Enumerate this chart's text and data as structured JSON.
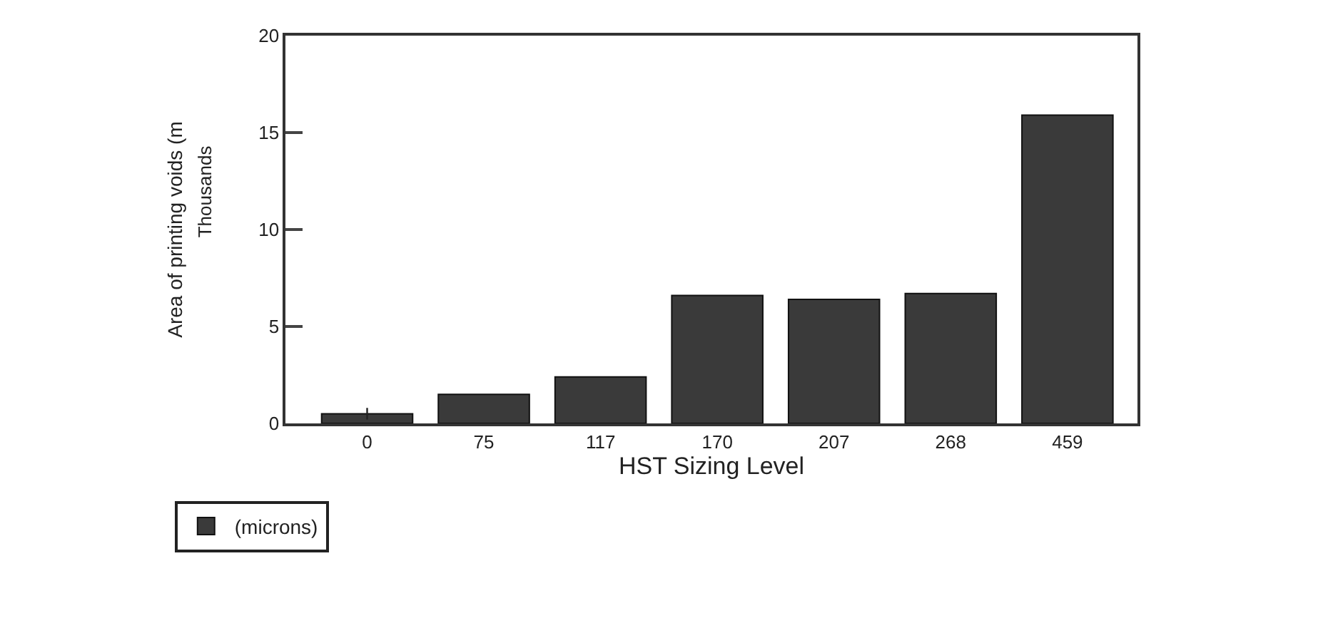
{
  "chart_data": {
    "type": "bar",
    "xlabel": "HST Sizing Level",
    "ylabel": "Area of printing voids (m",
    "annotations": [
      "Thousands"
    ],
    "categories": [
      "0",
      "75",
      "117",
      "170",
      "207",
      "268",
      "459"
    ],
    "series": [
      {
        "name": "(microns)",
        "color": "#3a3a3a",
        "values": [
          0.5,
          1.5,
          2.4,
          6.6,
          6.4,
          6.7,
          15.9
        ],
        "errors": [
          0.3,
          null,
          null,
          null,
          null,
          null,
          null
        ]
      }
    ],
    "ylim": [
      0,
      20
    ],
    "yticks": [
      0,
      5,
      10,
      15,
      20
    ],
    "legend": "bottom left"
  }
}
